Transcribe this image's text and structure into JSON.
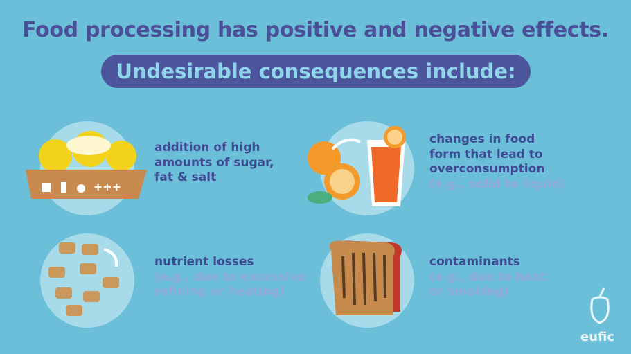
{
  "header": {
    "title": "Food processing has positive and negative effects.",
    "subtitle": "Undesirable consequences include:"
  },
  "items": [
    {
      "lines": [
        "addition of high",
        "amounts of sugar,",
        "fat & salt"
      ],
      "note_lines": [],
      "icon_text": "+++"
    },
    {
      "lines": [
        "changes in food",
        "form that lead to",
        "overconsumption"
      ],
      "note_lines": [
        "(e.g., solid to liquid)"
      ]
    },
    {
      "lines": [
        "nutrient losses"
      ],
      "note_lines": [
        "(e.g., due to excessive",
        "refining or heating)"
      ]
    },
    {
      "lines": [
        "contaminants"
      ],
      "note_lines": [
        "(e.g., due to heat",
        "or smoking)"
      ]
    }
  ],
  "logo": "eufic"
}
